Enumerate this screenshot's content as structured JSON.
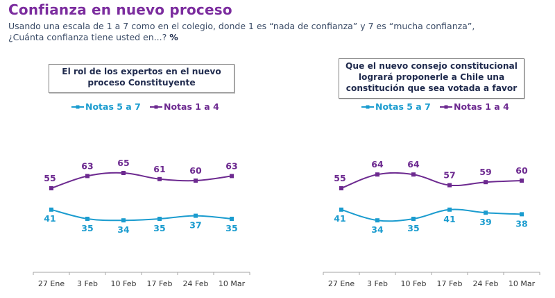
{
  "header": {
    "title": "Confianza en nuevo proceso",
    "subtitle_line1": "Usando una escala de 1 a 7 como en el colegio, donde 1 es “nada de confianza” y 7 es “mucha confianza”,",
    "subtitle_line2": "¿Cuánta confianza tiene usted en...?",
    "unit": "%"
  },
  "colors": {
    "notas_5_7": "#1b9ccf",
    "notas_1_4": "#6d2a90"
  },
  "chart_data": [
    {
      "type": "line",
      "title": "El rol de los expertos en el nuevo proceso Constituyente",
      "title_lines": [
        "El rol de los expertos en el nuevo",
        "proceso Constituyente"
      ],
      "categories": [
        "27 Ene",
        "3 Feb",
        "10 Feb",
        "17 Feb",
        "24 Feb",
        "10 Mar"
      ],
      "legend_position": "top-center",
      "grid": false,
      "series": [
        {
          "name": "Notas 5 a 7",
          "values": [
            41,
            35,
            34,
            35,
            37,
            35
          ]
        },
        {
          "name": "Notas 1 a 4",
          "values": [
            55,
            63,
            65,
            61,
            60,
            63
          ]
        }
      ]
    },
    {
      "type": "line",
      "title": "Que el nuevo consejo constitucional logrará proponerle a Chile una constitución que sea votada a favor",
      "title_lines": [
        "Que el nuevo consejo constitucional",
        "logrará proponerle a Chile una",
        "constitución que sea votada a favor"
      ],
      "categories": [
        "27 Ene",
        "3 Feb",
        "10 Feb",
        "17 Feb",
        "24 Feb",
        "10 Mar"
      ],
      "legend_position": "top-center",
      "grid": false,
      "series": [
        {
          "name": "Notas 5 a 7",
          "values": [
            41,
            34,
            35,
            41,
            39,
            38
          ]
        },
        {
          "name": "Notas 1 a 4",
          "values": [
            55,
            64,
            64,
            57,
            59,
            60
          ]
        }
      ]
    }
  ]
}
